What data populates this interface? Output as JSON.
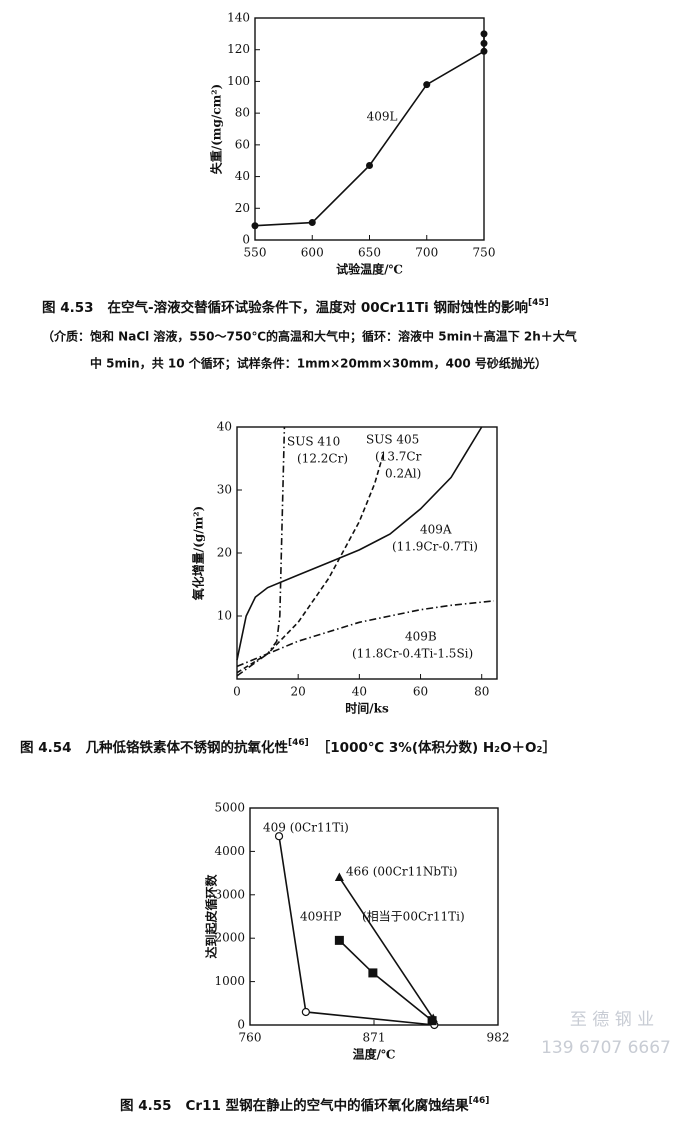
{
  "chart_data": [
    {
      "type": "line",
      "ylabel": "失重/(mg/cm²)",
      "xlabel": "试验温度/℃",
      "annotation": "409L",
      "xlim": [
        550,
        750
      ],
      "xticks": [
        550,
        600,
        650,
        700,
        750
      ],
      "ylim": [
        0,
        140
      ],
      "yticks": [
        0,
        20,
        40,
        60,
        80,
        100,
        120,
        140
      ],
      "series": [
        {
          "name": "409L",
          "color": "#111111",
          "dash": "solid",
          "marker": "circle-filled",
          "x": [
            550,
            600,
            650,
            700,
            750,
            750,
            750
          ],
          "values": [
            9,
            11,
            47,
            98,
            119,
            124,
            130
          ]
        }
      ],
      "caption": {
        "label": "图 4.53",
        "text": "在空气-溶液交替循环试验条件下，温度对 00Cr11Ti 钢耐蚀性的影响",
        "ref": "[45]",
        "notes": [
          "（介质：饱和 NaCl 溶液，550～750℃的高温和大气中；循环：溶液中 5min＋高温下 2h＋大气",
          "中 5min，共 10 个循环；试样条件：1mm×20mm×30mm，400 号砂纸抛光）"
        ]
      }
    },
    {
      "type": "line",
      "ylabel": "氧化增量/(g/m²)",
      "xlabel": "时间/ks",
      "xlim": [
        0,
        85
      ],
      "xticks": [
        0,
        20,
        40,
        60,
        80
      ],
      "ylim": [
        0,
        40
      ],
      "yticks": [
        10,
        20,
        30,
        40
      ],
      "series": [
        {
          "name": "SUS 410",
          "notes": [
            "(12.2Cr)"
          ],
          "color": "#111111",
          "dash": "dash-dot",
          "marker": "none",
          "x": [
            0,
            10,
            13,
            14,
            14.5,
            15,
            15.5
          ],
          "values": [
            2,
            4,
            6,
            10,
            20,
            30,
            40
          ]
        },
        {
          "name": "SUS 405",
          "notes": [
            "(13.7Cr",
            "0.2Al)"
          ],
          "color": "#111111",
          "dash": "dashed",
          "marker": "none",
          "x": [
            0,
            10,
            20,
            30,
            40,
            45,
            48
          ],
          "values": [
            1,
            4,
            9,
            16,
            25,
            31,
            36
          ]
        },
        {
          "name": "409A",
          "notes": [
            "(11.9Cr-0.7Ti)"
          ],
          "color": "#111111",
          "dash": "solid",
          "marker": "none",
          "x": [
            0,
            3,
            6,
            10,
            20,
            30,
            40,
            50,
            60,
            70,
            75,
            80
          ],
          "values": [
            3,
            10,
            13,
            14.5,
            16.5,
            18.5,
            20.5,
            23,
            27,
            32,
            36,
            40
          ]
        },
        {
          "name": "409B",
          "notes": [
            "(11.8Cr-0.4Ti-1.5Si)"
          ],
          "color": "#111111",
          "dash": "dash-dot",
          "marker": "none",
          "x": [
            0,
            10,
            20,
            30,
            40,
            50,
            60,
            70,
            80,
            84
          ],
          "values": [
            0.5,
            4,
            6,
            7.5,
            9,
            10,
            11,
            11.7,
            12.2,
            12.4
          ]
        }
      ],
      "caption": {
        "label": "图 4.54",
        "text": "几种低铬铁素体不锈钢的抗氧化性",
        "ref": "[46]",
        "tail": "［1000℃ 3%(体积分数) H₂O＋O₂］"
      }
    },
    {
      "type": "line",
      "ylabel": "达到起皮循环数",
      "xlabel": "温度/℃",
      "xlim": [
        760,
        982
      ],
      "xticks": [
        760,
        871,
        982
      ],
      "ylim": [
        0,
        5000
      ],
      "yticks": [
        0,
        1000,
        2000,
        3000,
        4000,
        5000
      ],
      "series": [
        {
          "name": "409 (0Cr11Ti)",
          "notes": [],
          "color": "#111111",
          "dash": "solid",
          "marker": "circle-open",
          "x": [
            786,
            810,
            925
          ],
          "values": [
            4350,
            300,
            0
          ]
        },
        {
          "name": "466 (00Cr11NbTi)",
          "notes": [],
          "color": "#111111",
          "dash": "solid",
          "marker": "triangle",
          "x": [
            840,
            924
          ],
          "values": [
            3400,
            150
          ]
        },
        {
          "name": "409HP",
          "notes": [
            "(相当于00Cr11Ti)"
          ],
          "color": "#111111",
          "dash": "solid",
          "marker": "square",
          "x": [
            840,
            870,
            923
          ],
          "values": [
            1950,
            1200,
            100
          ]
        }
      ],
      "caption": {
        "label": "图 4.55",
        "text": "Cr11 型钢在静止的空气中的循环氧化腐蚀结果",
        "ref": "[46]"
      }
    }
  ],
  "watermark": {
    "company": "至 德 钢 业",
    "phone": "139 6707 6667"
  }
}
